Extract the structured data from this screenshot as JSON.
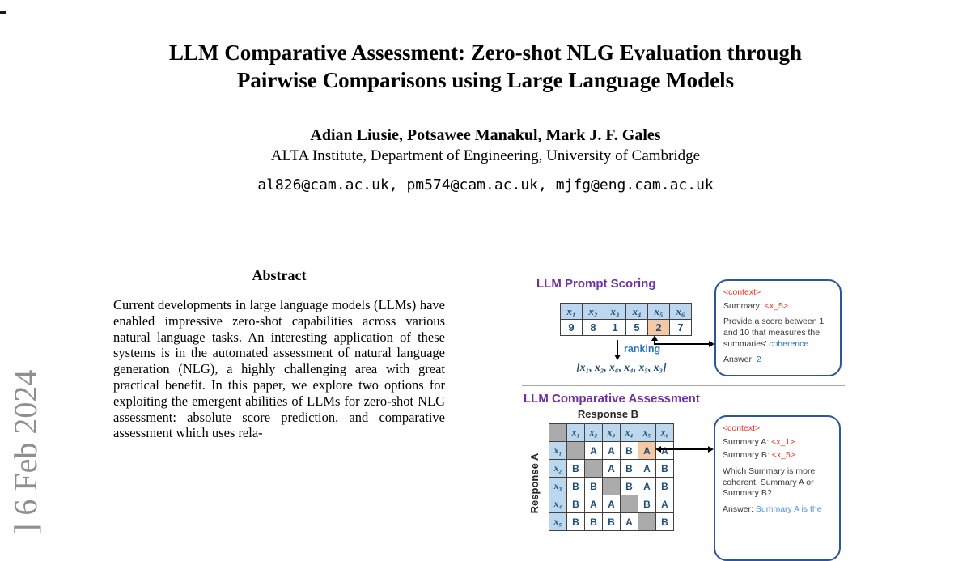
{
  "arxiv_stamp": {
    "visible_text": "] 6 Feb 2024",
    "color": "#8f8f8f"
  },
  "header": {
    "title_line1": "LLM Comparative Assessment: Zero-shot NLG Evaluation through",
    "title_line2": "Pairwise Comparisons using Large Language Models",
    "authors": "Adian Liusie, Potsawee Manakul, Mark J. F. Gales",
    "affiliation": "ALTA Institute, Department of Engineering, University of Cambridge",
    "emails": "al826@cam.ac.uk, pm574@cam.ac.uk, mjfg@eng.cam.ac.uk"
  },
  "abstract": {
    "heading": "Abstract",
    "text": "Current developments in large language models (LLMs) have enabled impressive zero-shot capabilities across various natural language tasks. An interesting application of these systems is in the automated assessment of natural language generation (NLG), a highly challenging area with great practical benefit. In this paper, we explore two options for exploiting the emergent abilities of LLMs for zero-shot NLG assessment: absolute score prediction, and comparative assessment which uses rela-"
  },
  "figure": {
    "colors": {
      "heading_purple": "#7030A0",
      "cell_header_blue": "#BDD7EE",
      "cell_highlight_orange": "#F5C9A3",
      "cell_diagonal_gray": "#ABABAB",
      "cell_text_navy": "#1F4E79",
      "box_border_blue": "#2E5597",
      "accent_red": "#EE3424",
      "accent_blue": "#2E75B6",
      "accent_light_blue": "#4D93DB"
    },
    "panel1": {
      "heading": "LLM Prompt Scoring",
      "table": {
        "headers": [
          "x₁",
          "x₂",
          "x₃",
          "x₄",
          "x₅",
          "x₆"
        ],
        "values": [
          "9",
          "8",
          "1",
          "5",
          "2",
          "7"
        ],
        "highlight_index": 4
      },
      "arrow_label": "ranking",
      "ranking_output": "[x₁, x₂, x₆, x₄, x₅, x₃]",
      "prompt_box": {
        "tag": "<context>",
        "line1_label": "Summary: ",
        "line1_value": "<x_5>",
        "body_before": "Provide a score between 1 and 10 that measures the summaries’ ",
        "body_accent": "coherence",
        "answer_label": "Answer: ",
        "answer_value": "2"
      }
    },
    "panel2": {
      "heading": "LLM Comparative Assessment",
      "matrix": {
        "col_axis": "Response B",
        "row_axis": "Response A",
        "col_headers": [
          "x₁",
          "x₂",
          "x₃",
          "x₄",
          "x₅",
          "x₆"
        ],
        "row_headers": [
          "x₁",
          "x₂",
          "x₃",
          "x₄",
          "x₅"
        ],
        "rows": [
          [
            "",
            "A",
            "A",
            "B",
            "A",
            "A"
          ],
          [
            "B",
            "",
            "A",
            "B",
            "A",
            "B"
          ],
          [
            "B",
            "B",
            "",
            "B",
            "A",
            "B"
          ],
          [
            "B",
            "A",
            "A",
            "",
            "B",
            "A"
          ],
          [
            "B",
            "B",
            "B",
            "A",
            "",
            "B"
          ]
        ],
        "highlight": {
          "row": 0,
          "col": 4
        }
      },
      "prompt_box": {
        "tag": "<context>",
        "lineA_label": "Summary A: ",
        "lineA_value": "<x_1>",
        "lineB_label": "Summary B: ",
        "lineB_value": "<x_5>",
        "question": "Which Summary is more coherent, Summary A or Summary B?",
        "answer_label": "Answer: ",
        "answer_value": "Summary A is the"
      }
    }
  }
}
